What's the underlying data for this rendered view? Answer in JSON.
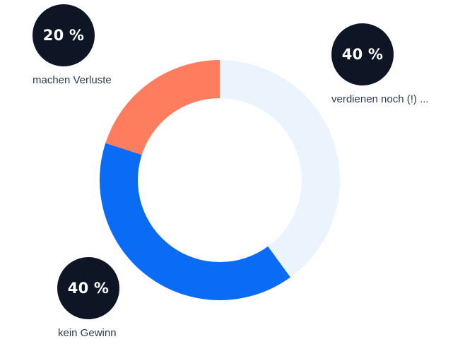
{
  "chart_data": {
    "type": "pie",
    "donut": true,
    "title": "",
    "start_angle_deg": 0,
    "direction": "clockwise",
    "slices": [
      {
        "label": "verdienen noch (!) ...",
        "value": 40,
        "value_label": "40 %",
        "color": "#ebf3fd"
      },
      {
        "label": "kein Gewinn",
        "value": 40,
        "value_label": "40 %",
        "color": "#0a6cf5"
      },
      {
        "label": "machen Verluste",
        "value": 20,
        "value_label": "20 %",
        "color": "#fe7d5f"
      }
    ]
  },
  "colors": {
    "badge_background": "#0e1626",
    "badge_text": "#ffffff",
    "label_text": "#2f3a4a"
  }
}
